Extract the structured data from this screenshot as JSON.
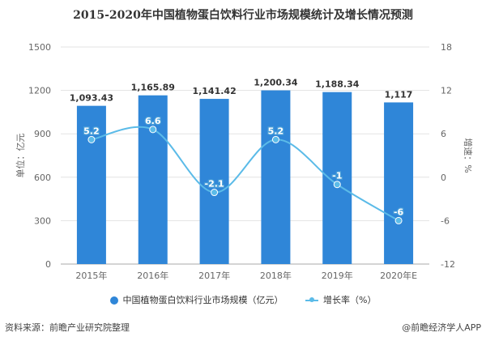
{
  "chart_data": {
    "type": "bar+line",
    "title": "2015-2020年中国植物蛋白饮料行业市场规模统计及增长情况预测",
    "categories": [
      "2015年",
      "2016年",
      "2017年",
      "2018年",
      "2019年",
      "2020年E"
    ],
    "series": [
      {
        "name": "中国植物蛋白饮料行业市场规模（亿元）",
        "type": "bar",
        "axis": "left",
        "values": [
          1093.43,
          1165.89,
          1141.42,
          1200.34,
          1188.34,
          1117
        ],
        "labels": [
          "1,093.43",
          "1,165.89",
          "1,141.42",
          "1,200.34",
          "1,188.34",
          "1,117"
        ],
        "color": "#2f86d8"
      },
      {
        "name": "增长率（%）",
        "type": "line",
        "axis": "right",
        "values": [
          5.2,
          6.6,
          -2.1,
          5.2,
          -1,
          -6
        ],
        "labels": [
          "5.2",
          "6.6",
          "-2.1",
          "5.2",
          "-1",
          "-6"
        ],
        "color": "#5bbbe8"
      }
    ],
    "ylabel_left": "单位：亿元",
    "ylabel_right": "增速：%",
    "ylim_left": [
      0,
      1500
    ],
    "yticks_left": [
      "0",
      "300",
      "600",
      "900",
      "1200",
      "1500"
    ],
    "ylim_right": [
      -12,
      18
    ],
    "yticks_right": [
      "-12",
      "-6",
      "0",
      "6",
      "12",
      "18"
    ],
    "grid": true,
    "legend": "bottom"
  },
  "footer": {
    "source": "资料来源：前瞻产业研究院整理",
    "credit": "@前瞻经济学人APP"
  }
}
